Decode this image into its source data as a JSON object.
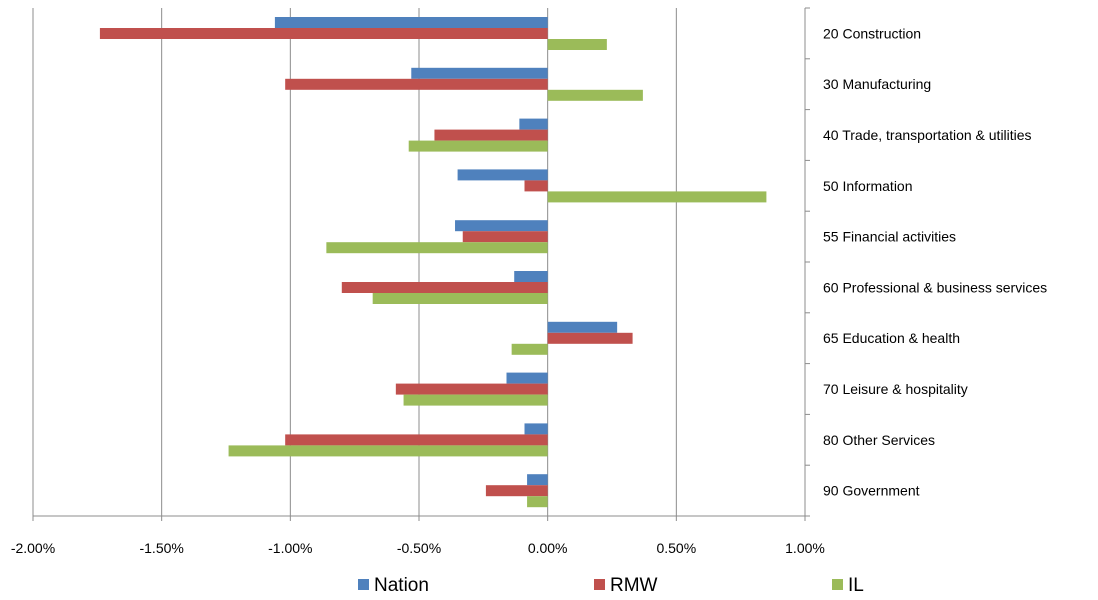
{
  "chart_data": {
    "type": "bar",
    "orientation": "horizontal",
    "categories": [
      "20 Construction",
      "30 Manufacturing",
      "40 Trade, transportation  & utilities",
      "50 Information",
      "55 Financial activities",
      "60 Professional & business services",
      "65 Education  & health",
      "70 Leisure & hospitality",
      "80 Other Services",
      "90 Government"
    ],
    "series": [
      {
        "name": "Nation",
        "color": "#4F81BD",
        "values": [
          -1.06,
          -0.53,
          -0.11,
          -0.35,
          -0.36,
          -0.13,
          0.27,
          -0.16,
          -0.09,
          -0.08
        ]
      },
      {
        "name": "RMW",
        "color": "#C0504D",
        "values": [
          -1.74,
          -1.02,
          -0.44,
          -0.09,
          -0.33,
          -0.8,
          0.33,
          -0.59,
          -1.02,
          -0.24
        ]
      },
      {
        "name": "IL",
        "color": "#9BBB59",
        "values": [
          0.23,
          0.37,
          -0.54,
          0.85,
          -0.86,
          -0.68,
          -0.14,
          -0.56,
          -1.24,
          -0.08
        ]
      }
    ],
    "xlim": [
      -2.0,
      1.0
    ],
    "xticks": [
      -2.0,
      -1.5,
      -1.0,
      -0.5,
      0.0,
      0.5,
      1.0
    ],
    "xtick_labels": [
      "-2.00%",
      "-1.50%",
      "-1.00%",
      "-0.50%",
      "0.00%",
      "0.50%",
      "1.00%"
    ],
    "grid": "vertical",
    "legend": "bottom"
  }
}
